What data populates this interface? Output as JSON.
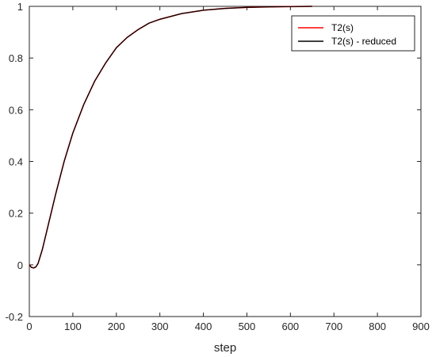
{
  "chart_data": {
    "type": "line",
    "xlabel": "step",
    "ylabel": "",
    "xlim": [
      0,
      900
    ],
    "ylim": [
      -0.2,
      1
    ],
    "xticks": [
      0,
      100,
      200,
      300,
      400,
      500,
      600,
      700,
      800,
      900
    ],
    "yticks": [
      -0.2,
      0,
      0.2,
      0.4,
      0.6,
      0.8,
      1
    ],
    "xtick_labels": [
      "0",
      "100",
      "200",
      "300",
      "400",
      "500",
      "600",
      "700",
      "800",
      "900"
    ],
    "ytick_labels": [
      "-0.2",
      "0",
      "0.2",
      "0.4",
      "0.6",
      "0.8",
      "1"
    ],
    "grid": false,
    "legend_position": "top-right",
    "series": [
      {
        "name": "T2(s)",
        "color": "#ff0000",
        "x": [
          0,
          5,
          10,
          15,
          20,
          30,
          40,
          50,
          60,
          80,
          100,
          125,
          150,
          175,
          200,
          225,
          250,
          275,
          300,
          350,
          400,
          450,
          500,
          550,
          600,
          650
        ],
        "y": [
          0,
          -0.01,
          -0.012,
          -0.008,
          0.005,
          0.06,
          0.13,
          0.2,
          0.27,
          0.4,
          0.51,
          0.62,
          0.71,
          0.78,
          0.84,
          0.88,
          0.91,
          0.935,
          0.95,
          0.972,
          0.985,
          0.992,
          0.996,
          0.998,
          0.999,
          1.0
        ]
      },
      {
        "name": "T2(s) - reduced",
        "color": "#000000",
        "x": [
          0,
          5,
          10,
          15,
          20,
          30,
          40,
          50,
          60,
          80,
          100,
          125,
          150,
          175,
          200,
          225,
          250,
          275,
          300,
          350,
          400,
          450,
          500,
          550,
          600,
          650
        ],
        "y": [
          0,
          -0.01,
          -0.012,
          -0.008,
          0.005,
          0.06,
          0.13,
          0.2,
          0.27,
          0.4,
          0.51,
          0.62,
          0.71,
          0.78,
          0.84,
          0.88,
          0.91,
          0.935,
          0.95,
          0.972,
          0.985,
          0.992,
          0.996,
          0.998,
          0.999,
          1.0
        ]
      }
    ]
  }
}
